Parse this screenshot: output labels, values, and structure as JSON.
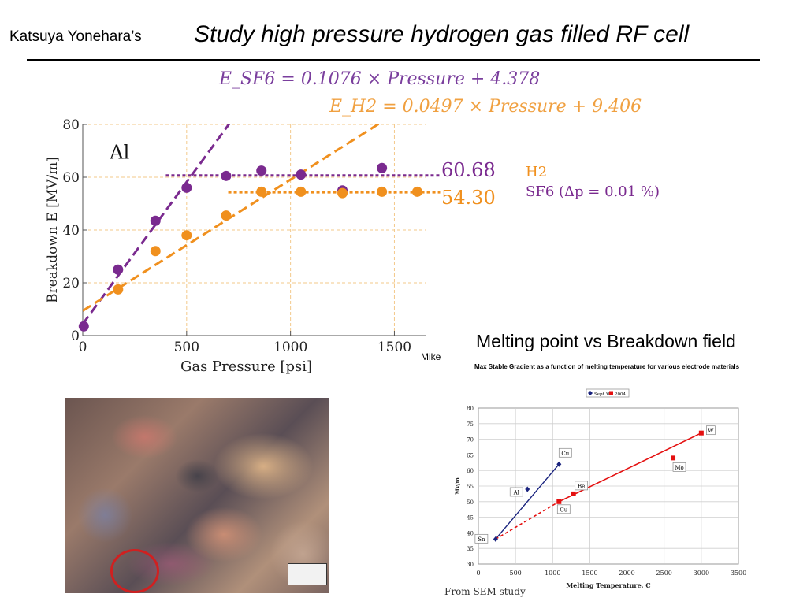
{
  "slide": {
    "title_author": "Katsuya Yonehara’s",
    "title_main": "Study high pressure hydrogen gas filled RF cell",
    "eq_sf6": "E_SF6 = 0.1076 × Pressure + 4.378",
    "eq_h2": "E_H2 = 0.0497 × Pressure + 9.406",
    "credit": "Mike",
    "melting_title": "Melting point vs Breakdown field",
    "melting_subtitle": "Max Stable Gradient as a function of melting temperature for various electrode materials",
    "source_note": "From SEM study"
  },
  "colors": {
    "sf6": "#7a2a8f",
    "h2": "#f0901e",
    "sept08": "#1a237e",
    "y2004": "#e41010"
  },
  "chart_data": [
    {
      "type": "scatter",
      "title": "",
      "annotation": "Al",
      "xlabel": "Gas Pressure [psi]",
      "ylabel": "Breakdown E [MV/m]",
      "xlim": [
        0,
        1650
      ],
      "ylim": [
        0,
        80
      ],
      "xticks": [
        0,
        500,
        1000,
        1500
      ],
      "yticks": [
        0,
        20,
        40,
        60,
        80
      ],
      "grid": true,
      "series": [
        {
          "key": "sf6",
          "points": [
            [
              5,
              3.5
            ],
            [
              170,
              25
            ],
            [
              350,
              43.5
            ],
            [
              500,
              56
            ],
            [
              690,
              60.5
            ],
            [
              860,
              62.5
            ],
            [
              1050,
              61
            ],
            [
              1250,
              55
            ],
            [
              1440,
              63.5
            ]
          ],
          "fit": {
            "slope": 0.1076,
            "intercept": 4.378
          },
          "plateau": 60.68
        },
        {
          "key": "h2",
          "points": [
            [
              170,
              17.5
            ],
            [
              350,
              32
            ],
            [
              500,
              38
            ],
            [
              690,
              45.5
            ],
            [
              860,
              54.5
            ],
            [
              1050,
              54.5
            ],
            [
              1250,
              54
            ],
            [
              1440,
              54.5
            ],
            [
              1610,
              54.5
            ]
          ],
          "fit": {
            "slope": 0.0497,
            "intercept": 9.406
          },
          "plateau": 54.3
        }
      ],
      "plateau_labels": [
        "60.68",
        "54.30"
      ],
      "legend": [
        "H2",
        "SF6 (Δp = 0.01 %)"
      ]
    },
    {
      "type": "scatter",
      "title": "Max Stable Gradient as a function of melting temperature for various electrode materials",
      "xlabel": "Melting Temperature, C",
      "ylabel": "Mv/m",
      "xlim": [
        0,
        3500
      ],
      "ylim": [
        30,
        80
      ],
      "xticks": [
        0,
        500,
        1000,
        1500,
        2000,
        2500,
        3000,
        3500
      ],
      "yticks": [
        30,
        35,
        40,
        45,
        50,
        55,
        60,
        65,
        70,
        75,
        80
      ],
      "grid": true,
      "legend_position": "top",
      "series": [
        {
          "name": "Sept '08",
          "points": [
            [
              232,
              38
            ],
            [
              660,
              54
            ],
            [
              1085,
              62
            ]
          ]
        },
        {
          "name": "2004",
          "points": [
            [
              1085,
              50
            ],
            [
              1280,
              52.5
            ],
            [
              2620,
              64
            ],
            [
              3000,
              72
            ]
          ]
        }
      ],
      "annotations": [
        {
          "text": "Sn",
          "x": 232,
          "y": 38
        },
        {
          "text": "Al",
          "x": 660,
          "y": 54
        },
        {
          "text": "Cu",
          "x": 1085,
          "y": 62
        },
        {
          "text": "Be",
          "x": 1280,
          "y": 52.5
        },
        {
          "text": "Cu",
          "x": 1085,
          "y": 50
        },
        {
          "text": "Mo",
          "x": 2620,
          "y": 64
        },
        {
          "text": "W",
          "x": 3000,
          "y": 72
        }
      ]
    }
  ]
}
